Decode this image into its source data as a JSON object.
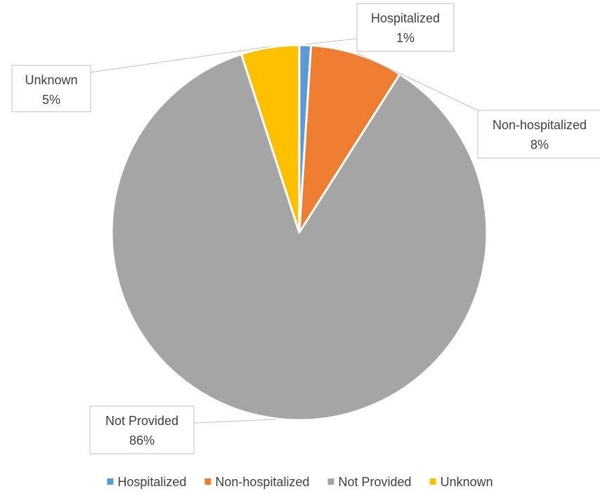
{
  "chart_data": {
    "type": "pie",
    "title": "",
    "slices": [
      {
        "name": "Hospitalized",
        "value": 1,
        "label": "1%",
        "color": "#5B9BD5"
      },
      {
        "name": "Non-hospitalized",
        "value": 8,
        "label": "8%",
        "color": "#ED7D31"
      },
      {
        "name": "Not Provided",
        "value": 86,
        "label": "86%",
        "color": "#A5A5A5"
      },
      {
        "name": "Unknown",
        "value": 5,
        "label": "5%",
        "color": "#FFC000"
      }
    ],
    "legend_position": "bottom",
    "labels": "outside-callouts"
  }
}
